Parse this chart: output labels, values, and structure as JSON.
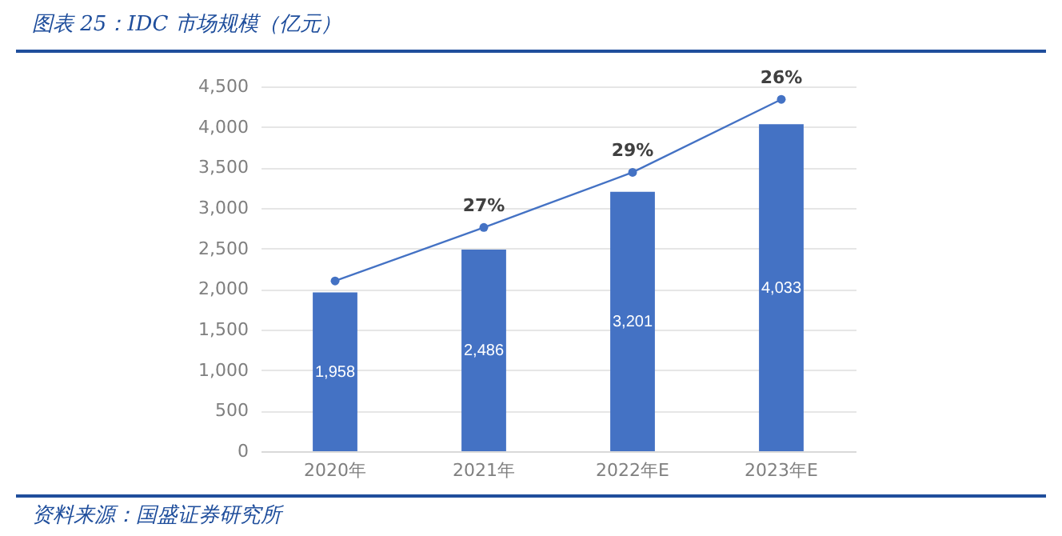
{
  "chart_data": {
    "type": "bar",
    "title": "图表 25：IDC 市场规模（亿元）",
    "categories": [
      "2020年",
      "2021年",
      "2022年E",
      "2023年E"
    ],
    "series": [
      {
        "color": "#4472c4",
        "values": [
          1958,
          2486,
          3201,
          4033
        ],
        "value_labels": [
          "1,958",
          "2,486",
          "3,201",
          "4,033"
        ]
      },
      {
        "type": "line",
        "color": "#4472c4",
        "marker": "circle",
        "values": [
          2100,
          2760,
          3440,
          4340
        ]
      }
    ],
    "ylim": [
      0,
      4500
    ],
    "yticks": [
      {
        "value": 0,
        "label": "0"
      },
      {
        "value": 500,
        "label": "500"
      },
      {
        "value": 1000,
        "label": "1,000"
      },
      {
        "value": 1500,
        "label": "1,500"
      },
      {
        "value": 2000,
        "label": "2,000"
      },
      {
        "value": 2500,
        "label": "2,500"
      },
      {
        "value": 3000,
        "label": "3,000"
      },
      {
        "value": 3500,
        "label": "3,500"
      },
      {
        "value": 4000,
        "label": "4,000"
      },
      {
        "value": 4500,
        "label": "4,500"
      }
    ],
    "grid": "y",
    "annotations": [
      {
        "text": "27%",
        "x": "2021年",
        "y": 2760
      },
      {
        "text": "29%",
        "x": "2022年E",
        "y": 3440
      },
      {
        "text": "26%",
        "x": "2023年E",
        "y": 4340
      },
      "资料来源：国盛证券研究所"
    ]
  }
}
